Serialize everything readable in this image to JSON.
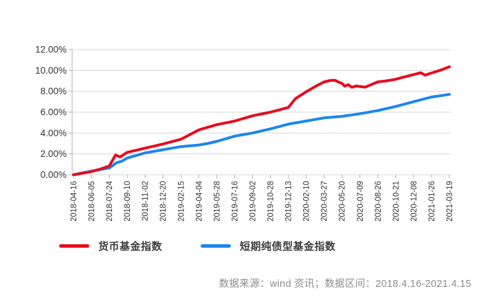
{
  "page": {
    "background": "#ffffff"
  },
  "footer": {
    "text": "数据来源：wind 资讯；数据区间：2018.4.16-2021.4.15"
  },
  "chart_data": {
    "type": "line",
    "title": "",
    "xlabel": "",
    "ylabel": "",
    "categories": [
      "2018-04-16",
      "2018-06-05",
      "2018-07-24",
      "2018-09-10",
      "2018-11-02",
      "2018-12-20",
      "2019-02-15",
      "2019-04-04",
      "2019-05-28",
      "2019-07-16",
      "2019-09-02",
      "2019-10-28",
      "2019-12-13",
      "2020-02-10",
      "2020-03-27",
      "2020-05-20",
      "2020-07-09",
      "2020-08-26",
      "2020-10-21",
      "2020-12-08",
      "2021-01-26",
      "2021-03-19"
    ],
    "x_label_rotation": -90,
    "ylim": [
      0,
      12
    ],
    "y_step": 2,
    "y_tick_labels": [
      "0.00%",
      "2.00%",
      "4.00%",
      "6.00%",
      "8.00%",
      "10.00%",
      "12.00%"
    ],
    "grid": true,
    "legend_position": "bottom",
    "colors": {
      "grid": "#d6d6d6",
      "axis": "#b0b0b0",
      "tick_label": "#333333"
    },
    "series": [
      {
        "name": "货币基金指数",
        "color": "#ea0b1e",
        "values": [
          0.0,
          0.3,
          0.85,
          2.15,
          2.55,
          2.95,
          3.4,
          4.3,
          4.8,
          5.15,
          5.65,
          6.0,
          6.45,
          7.95,
          8.9,
          8.75,
          8.45,
          8.9,
          9.15,
          9.6,
          9.75,
          10.35
        ],
        "detail": [
          [
            0.5,
            0.15
          ],
          [
            1.5,
            0.55
          ],
          [
            2.35,
            1.9
          ],
          [
            2.6,
            1.7
          ],
          [
            3.5,
            2.35
          ],
          [
            6.5,
            3.85
          ],
          [
            12.4,
            7.3
          ],
          [
            13.5,
            8.45
          ],
          [
            14.35,
            9.03
          ],
          [
            14.6,
            9.06
          ],
          [
            14.85,
            8.85
          ],
          [
            15.15,
            8.5
          ],
          [
            15.35,
            8.63
          ],
          [
            15.55,
            8.38
          ],
          [
            15.8,
            8.52
          ],
          [
            16.3,
            8.4
          ],
          [
            17.5,
            9.0
          ],
          [
            18.5,
            9.38
          ],
          [
            19.4,
            9.78
          ],
          [
            19.65,
            9.55
          ],
          [
            20.5,
            10.02
          ]
        ]
      },
      {
        "name": "短期纯债型基金指数",
        "color": "#1c86ee",
        "values": [
          0.0,
          0.35,
          0.65,
          1.6,
          2.1,
          2.4,
          2.7,
          2.85,
          3.2,
          3.7,
          4.0,
          4.4,
          4.85,
          5.15,
          5.45,
          5.6,
          5.85,
          6.15,
          6.55,
          7.0,
          7.45,
          7.7
        ],
        "detail": [
          [
            0.5,
            0.18
          ],
          [
            1.5,
            0.5
          ],
          [
            2.4,
            1.15
          ],
          [
            2.7,
            1.3
          ],
          [
            7.5,
            3.0
          ],
          [
            13.5,
            5.3
          ]
        ]
      }
    ]
  }
}
